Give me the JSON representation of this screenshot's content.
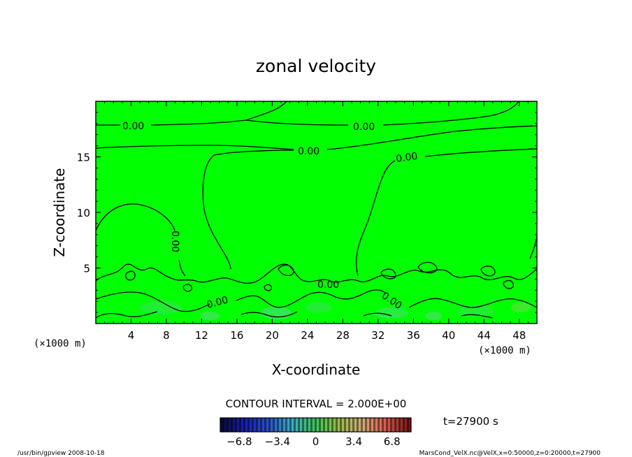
{
  "chart_data": {
    "type": "heatmap",
    "title": "zonal velocity",
    "xlabel": "X-coordinate",
    "ylabel": "Z-coordinate",
    "x_unit": "(×1000 m)",
    "y_unit": "(×1000 m)",
    "xlim": [
      0,
      50
    ],
    "ylim": [
      0,
      20
    ],
    "x_ticks": [
      4,
      8,
      12,
      16,
      20,
      24,
      28,
      32,
      36,
      40,
      44,
      48
    ],
    "y_ticks": [
      5,
      10,
      15
    ],
    "contour_interval_text": "CONTOUR INTERVAL = 2.000E+00",
    "contour_labels": [
      "0.00",
      "0.00",
      "0.00",
      "0.00",
      "0.00",
      "0.00",
      "0.00",
      "0.00"
    ],
    "field_value_background": 0.0,
    "colorbar": {
      "range": [
        -8.5,
        8.5
      ],
      "tick_values": [
        -6.8,
        -3.4,
        0,
        3.4,
        6.8
      ],
      "tick_labels": [
        "−6.8",
        "−3.4",
        "0",
        "3.4",
        "6.8"
      ]
    },
    "time_label": "t=27900 s"
  },
  "footer": {
    "left": "/usr/bin/gpview   2008-10-18",
    "right": "MarsCond_VelX.nc@VelX,x=0:50000,z=0:20000,t=27900"
  },
  "colors": {
    "background": "#ffffff",
    "field_green": "#00ff00",
    "line": "#000000"
  }
}
